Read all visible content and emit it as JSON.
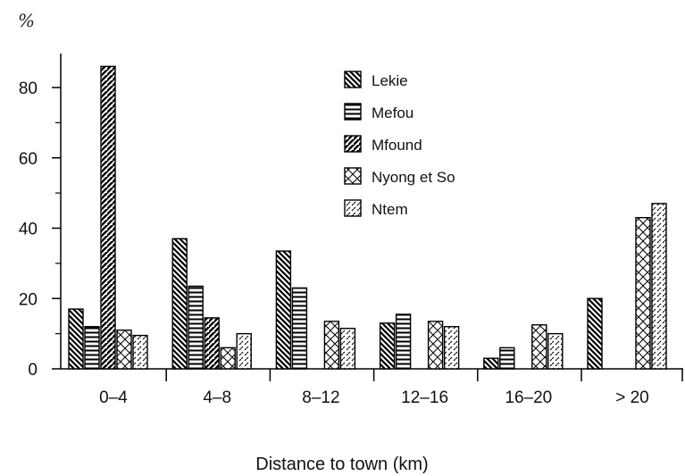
{
  "chart_data": {
    "type": "bar",
    "title": "",
    "xlabel": "Distance to town (km)",
    "ylabel": "%",
    "ylim": [
      0,
      90
    ],
    "yticks": [
      0,
      20,
      40,
      60,
      80
    ],
    "grid": false,
    "legend_position": "top-right",
    "categories": [
      "0–4",
      "4–8",
      "8–12",
      "12–16",
      "16–20",
      "> 20"
    ],
    "series": [
      {
        "name": "Lekie",
        "pattern": "back-diagonal",
        "values": [
          17,
          37,
          33.5,
          13,
          3,
          20
        ]
      },
      {
        "name": "Mefou",
        "pattern": "horizontal",
        "values": [
          12,
          23.5,
          23,
          15.5,
          6,
          0
        ]
      },
      {
        "name": "Mfound",
        "pattern": "forward-diagonal",
        "values": [
          86,
          14.5,
          0,
          0,
          0,
          0
        ]
      },
      {
        "name": "Nyong et So",
        "pattern": "crosshatch",
        "values": [
          11,
          6,
          13.5,
          13.5,
          12.5,
          43
        ]
      },
      {
        "name": "Ntem",
        "pattern": "dots-dashes",
        "values": [
          9.5,
          10,
          11.5,
          12,
          10,
          47
        ]
      }
    ]
  }
}
